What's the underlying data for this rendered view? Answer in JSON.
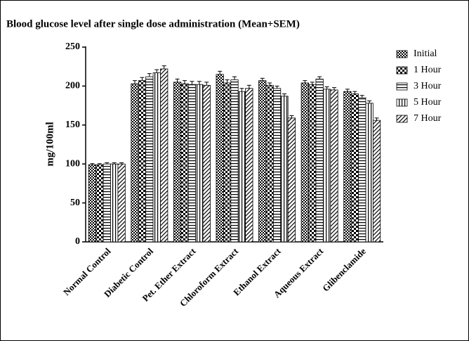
{
  "chart_data": {
    "type": "bar",
    "title": "Blood glucose level after single dose administration (Mean+SEM)",
    "y_label": "mg/100ml",
    "categories": [
      "Normal Control",
      "Diabetic Control",
      "Pet. Ether Extract",
      "Chloroform Extract",
      "Ethanol Extract",
      "Aqueous Extract",
      "Glibenclamide"
    ],
    "series": [
      {
        "name": "Initial",
        "color": "#000000",
        "pattern": "dense-checker",
        "values": [
          99,
          203,
          205,
          215,
          207,
          204,
          193
        ],
        "errors": [
          1.5,
          4,
          4,
          4,
          3,
          3,
          3
        ]
      },
      {
        "name": "1 Hour",
        "color": "#000000",
        "pattern": "checker",
        "values": [
          99,
          207,
          203,
          204,
          201,
          202,
          190
        ],
        "errors": [
          1.5,
          4,
          4,
          4,
          3,
          3,
          3
        ]
      },
      {
        "name": "3 Hour",
        "color": "#000000",
        "pattern": "horizontal",
        "values": [
          100,
          212,
          202,
          208,
          197,
          209,
          185
        ],
        "errors": [
          1.5,
          4,
          4,
          4,
          3,
          3,
          3
        ]
      },
      {
        "name": "5 Hour",
        "color": "#000000",
        "pattern": "vertical",
        "values": [
          100,
          217,
          202,
          193,
          187,
          196,
          178
        ],
        "errors": [
          1.5,
          4,
          4,
          4,
          3,
          3,
          3
        ]
      },
      {
        "name": "7 Hour",
        "color": "#000000",
        "pattern": "diagonal",
        "values": [
          100,
          222,
          201,
          197,
          159,
          195,
          156
        ],
        "errors": [
          1.5,
          4,
          4,
          4,
          3,
          3,
          3
        ]
      }
    ],
    "ylim": [
      0,
      250
    ],
    "yticks": [
      0,
      50,
      100,
      150,
      200,
      250
    ],
    "grid": false,
    "legend": "right"
  }
}
